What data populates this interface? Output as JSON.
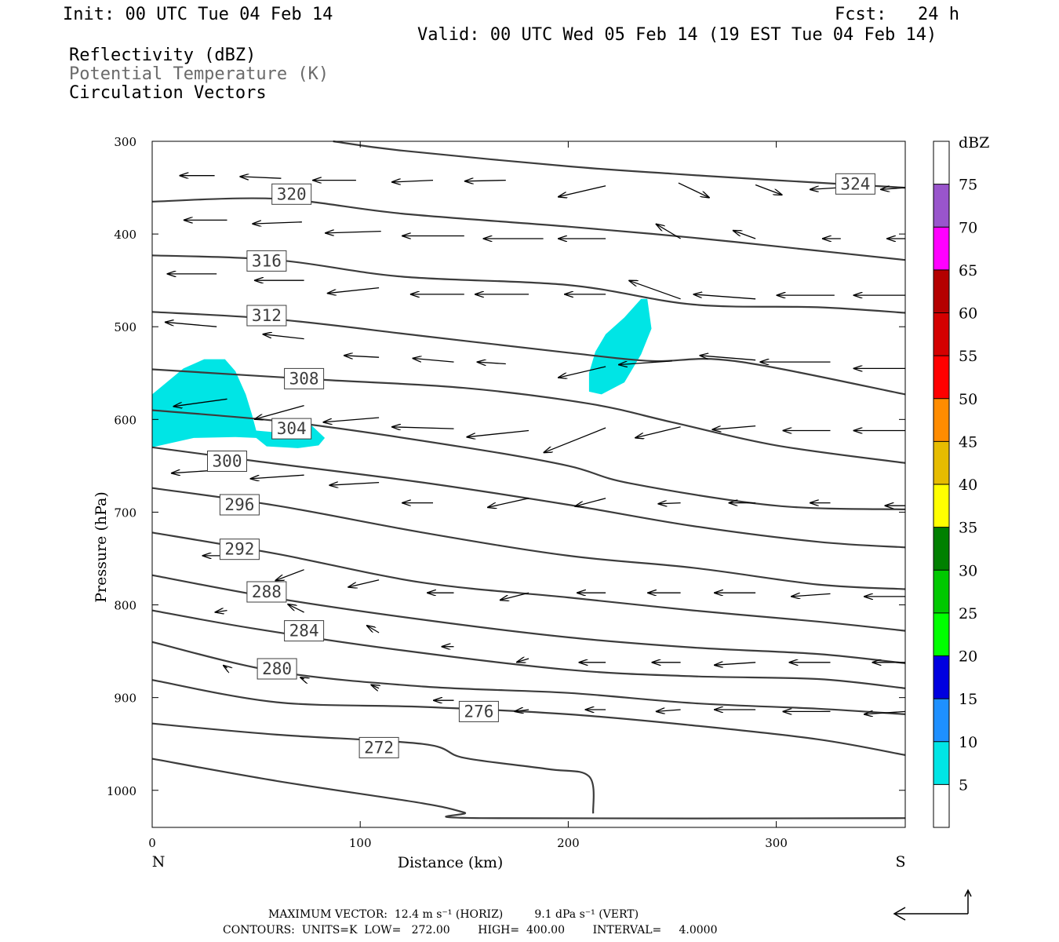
{
  "header": {
    "init": "Init: 00 UTC Tue 04 Feb 14",
    "fcst": "Fcst:   24 h",
    "valid": "Valid: 00 UTC Wed 05 Feb 14 (19 EST Tue 04 Feb 14)",
    "field1": "Reflectivity (dBZ)",
    "field2": "Potential Temperature (K)",
    "field3": "Circulation Vectors"
  },
  "footer": {
    "line1": "MAXIMUM VECTOR:  12.4 m s⁻¹ (HORIZ)         9.1 dPa s⁻¹ (VERT)",
    "line2": "CONTOURS:  UNITS=K  LOW=   272.00        HIGH=  400.00        INTERVAL=     4.0000"
  },
  "chart_data": {
    "type": "cross-section",
    "xlabel": "Distance (km)",
    "ylabel": "Pressure (hPa)",
    "xlim": [
      0,
      362
    ],
    "ylim": [
      1040,
      300
    ],
    "x_ticks": [
      "0",
      "100",
      "200",
      "300"
    ],
    "y_ticks": [
      "300",
      "400",
      "500",
      "600",
      "700",
      "800",
      "900",
      "1000"
    ],
    "end_labels": {
      "left": "N",
      "right": "S"
    },
    "colorbar": {
      "unit": "dBZ",
      "levels": [
        "5",
        "10",
        "15",
        "20",
        "25",
        "30",
        "35",
        "40",
        "45",
        "50",
        "55",
        "60",
        "65",
        "70",
        "75"
      ],
      "colors": [
        "#ffffff",
        "#00e5e5",
        "#1e90ff",
        "#0000e0",
        "#00ff00",
        "#00c800",
        "#008000",
        "#ffff00",
        "#e6bc00",
        "#ff8c00",
        "#ff0000",
        "#d40000",
        "#b40000",
        "#ff00ff",
        "#9955cc",
        "#ffffff"
      ]
    },
    "theta_contours": [
      {
        "label": "324",
        "lx": 338,
        "ly": 346,
        "pts": [
          [
            87,
            300
          ],
          [
            120,
            310
          ],
          [
            200,
            327
          ],
          [
            250,
            335
          ],
          [
            300,
            342
          ],
          [
            362,
            350
          ]
        ]
      },
      {
        "label": "320",
        "lx": 67,
        "ly": 357,
        "pts": [
          [
            0,
            365
          ],
          [
            60,
            362
          ],
          [
            120,
            378
          ],
          [
            200,
            392
          ],
          [
            260,
            404
          ],
          [
            320,
            418
          ],
          [
            362,
            428
          ]
        ]
      },
      {
        "label": "316",
        "lx": 55,
        "ly": 429,
        "pts": [
          [
            0,
            423
          ],
          [
            60,
            428
          ],
          [
            120,
            446
          ],
          [
            200,
            455
          ],
          [
            260,
            476
          ],
          [
            320,
            479
          ],
          [
            362,
            485
          ]
        ]
      },
      {
        "label": "312",
        "lx": 55,
        "ly": 488,
        "pts": [
          [
            0,
            484
          ],
          [
            60,
            492
          ],
          [
            130,
            510
          ],
          [
            200,
            528
          ],
          [
            240,
            537
          ],
          [
            280,
            537
          ],
          [
            362,
            573
          ]
        ]
      },
      {
        "label": "308",
        "lx": 73,
        "ly": 556,
        "pts": [
          [
            0,
            546
          ],
          [
            80,
            557
          ],
          [
            150,
            566
          ],
          [
            210,
            583
          ],
          [
            250,
            603
          ],
          [
            300,
            628
          ],
          [
            362,
            647
          ]
        ]
      },
      {
        "label": "304",
        "lx": 67,
        "ly": 610,
        "pts": [
          [
            0,
            590
          ],
          [
            70,
            604
          ],
          [
            150,
            630
          ],
          [
            200,
            650
          ],
          [
            230,
            669
          ],
          [
            300,
            693
          ],
          [
            362,
            697
          ]
        ]
      },
      {
        "label": "300",
        "lx": 36,
        "ly": 645,
        "pts": [
          [
            0,
            630
          ],
          [
            50,
            645
          ],
          [
            130,
            668
          ],
          [
            200,
            692
          ],
          [
            260,
            715
          ],
          [
            320,
            732
          ],
          [
            362,
            738
          ]
        ]
      },
      {
        "label": "296",
        "lx": 42,
        "ly": 692,
        "pts": [
          [
            0,
            674
          ],
          [
            60,
            693
          ],
          [
            130,
            722
          ],
          [
            200,
            747
          ],
          [
            260,
            760
          ],
          [
            320,
            778
          ],
          [
            362,
            783
          ]
        ]
      },
      {
        "label": "292",
        "lx": 42,
        "ly": 740,
        "pts": [
          [
            0,
            722
          ],
          [
            60,
            745
          ],
          [
            130,
            776
          ],
          [
            200,
            792
          ],
          [
            260,
            806
          ],
          [
            320,
            818
          ],
          [
            362,
            828
          ]
        ]
      },
      {
        "label": "288",
        "lx": 55,
        "ly": 786,
        "pts": [
          [
            0,
            768
          ],
          [
            60,
            793
          ],
          [
            130,
            816
          ],
          [
            200,
            835
          ],
          [
            260,
            846
          ],
          [
            320,
            853
          ],
          [
            362,
            863
          ]
        ]
      },
      {
        "label": "284",
        "lx": 73,
        "ly": 828,
        "pts": [
          [
            0,
            806
          ],
          [
            50,
            826
          ],
          [
            120,
            849
          ],
          [
            200,
            870
          ],
          [
            260,
            877
          ],
          [
            320,
            880
          ],
          [
            362,
            890
          ]
        ]
      },
      {
        "label": "280",
        "lx": 60,
        "ly": 869,
        "pts": [
          [
            0,
            840
          ],
          [
            60,
            872
          ],
          [
            130,
            888
          ],
          [
            200,
            895
          ],
          [
            260,
            906
          ],
          [
            320,
            912
          ],
          [
            362,
            918
          ]
        ]
      },
      {
        "label": "276",
        "lx": 157,
        "ly": 915,
        "pts": [
          [
            0,
            881
          ],
          [
            60,
            905
          ],
          [
            130,
            910
          ],
          [
            200,
            918
          ],
          [
            260,
            930
          ],
          [
            320,
            945
          ],
          [
            362,
            962
          ]
        ]
      },
      {
        "label": "272",
        "lx": 109,
        "ly": 954,
        "pts": [
          [
            0,
            928
          ],
          [
            60,
            940
          ],
          [
            130,
            950
          ],
          [
            150,
            965
          ],
          [
            190,
            977
          ],
          [
            210,
            985
          ],
          [
            212,
            1025
          ]
        ]
      }
    ],
    "ground_line": [
      [
        0,
        966
      ],
      [
        60,
        990
      ],
      [
        130,
        1014
      ],
      [
        150,
        1024
      ],
      [
        158,
        1030
      ],
      [
        362,
        1030
      ]
    ],
    "reflectivity_areas": [
      {
        "dbz_bin": "5-10",
        "pts": [
          [
            0,
            573
          ],
          [
            15,
            545
          ],
          [
            25,
            535
          ],
          [
            35,
            535
          ],
          [
            40,
            548
          ],
          [
            45,
            573
          ],
          [
            48,
            595
          ],
          [
            50,
            612
          ],
          [
            60,
            614
          ],
          [
            65,
            600
          ],
          [
            75,
            603
          ],
          [
            83,
            620
          ],
          [
            80,
            628
          ],
          [
            70,
            631
          ],
          [
            55,
            629
          ],
          [
            50,
            620
          ],
          [
            40,
            619
          ],
          [
            20,
            620
          ],
          [
            0,
            630
          ]
        ]
      },
      {
        "dbz_bin": "5-10",
        "pts": [
          [
            218,
            508
          ],
          [
            227,
            490
          ],
          [
            235,
            470
          ],
          [
            238,
            470
          ],
          [
            240,
            502
          ],
          [
            235,
            530
          ],
          [
            227,
            560
          ],
          [
            216,
            573
          ],
          [
            210,
            570
          ],
          [
            210,
            550
          ],
          [
            213,
            527
          ]
        ]
      }
    ],
    "vectors": [
      [
        30,
        337,
        -17,
        0
      ],
      [
        62,
        340,
        -20,
        -2
      ],
      [
        98,
        342,
        -21,
        0
      ],
      [
        135,
        342,
        -20,
        2
      ],
      [
        170,
        342,
        -20,
        1
      ],
      [
        218,
        348,
        -23,
        12
      ],
      [
        253,
        345,
        15,
        16
      ],
      [
        290,
        347,
        13,
        11
      ],
      [
        330,
        350,
        -14,
        2
      ],
      [
        362,
        350,
        -12,
        2
      ],
      [
        36,
        385,
        -21,
        0
      ],
      [
        72,
        387,
        -24,
        2
      ],
      [
        110,
        397,
        -27,
        2
      ],
      [
        150,
        402,
        -30,
        0
      ],
      [
        188,
        405,
        -29,
        0
      ],
      [
        218,
        405,
        -23,
        0
      ],
      [
        254,
        405,
        -12,
        -16
      ],
      [
        290,
        405,
        -11,
        -9
      ],
      [
        331,
        405,
        -9,
        0
      ],
      [
        362,
        405,
        -9,
        0
      ],
      [
        31,
        443,
        -24,
        0
      ],
      [
        73,
        450,
        -24,
        0
      ],
      [
        109,
        458,
        -25,
        6
      ],
      [
        150,
        465,
        -26,
        0
      ],
      [
        181,
        465,
        -26,
        0
      ],
      [
        218,
        465,
        -20,
        0
      ],
      [
        254,
        470,
        -25,
        -20
      ],
      [
        290,
        470,
        -30,
        -5
      ],
      [
        328,
        466,
        -28,
        0
      ],
      [
        362,
        466,
        -25,
        0
      ],
      [
        31,
        500,
        -25,
        -5
      ],
      [
        73,
        513,
        -20,
        -5
      ],
      [
        109,
        533,
        -17,
        -2
      ],
      [
        145,
        538,
        -20,
        -4
      ],
      [
        170,
        540,
        -14,
        -2
      ],
      [
        218,
        543,
        -23,
        12
      ],
      [
        250,
        537,
        -26,
        4
      ],
      [
        290,
        536,
        -27,
        -5
      ],
      [
        326,
        538,
        -34,
        0
      ],
      [
        362,
        545,
        -25,
        0
      ],
      [
        36,
        578,
        -26,
        8
      ],
      [
        73,
        585,
        -24,
        15
      ],
      [
        109,
        598,
        -27,
        5
      ],
      [
        145,
        610,
        -30,
        -2
      ],
      [
        181,
        612,
        -30,
        7
      ],
      [
        218,
        609,
        -30,
        27
      ],
      [
        254,
        608,
        -22,
        12
      ],
      [
        290,
        607,
        -21,
        4
      ],
      [
        326,
        612,
        -23,
        0
      ],
      [
        362,
        612,
        -25,
        0
      ],
      [
        36,
        654,
        -27,
        4
      ],
      [
        73,
        660,
        -26,
        4
      ],
      [
        109,
        668,
        -24,
        3
      ],
      [
        135,
        690,
        -15,
        0
      ],
      [
        181,
        685,
        -20,
        10
      ],
      [
        218,
        685,
        -15,
        9
      ],
      [
        254,
        690,
        -11,
        1
      ],
      [
        290,
        690,
        -13,
        0
      ],
      [
        326,
        690,
        -10,
        0
      ],
      [
        362,
        693,
        -10,
        0
      ],
      [
        36,
        747,
        -12,
        0
      ],
      [
        73,
        762,
        -14,
        12
      ],
      [
        109,
        773,
        -15,
        8
      ],
      [
        145,
        787,
        -13,
        0
      ],
      [
        181,
        787,
        -14,
        8
      ],
      [
        218,
        787,
        -14,
        0
      ],
      [
        254,
        787,
        -16,
        0
      ],
      [
        290,
        787,
        -20,
        0
      ],
      [
        326,
        788,
        -19,
        3
      ],
      [
        362,
        791,
        -20,
        0
      ],
      [
        36,
        806,
        -6,
        2
      ],
      [
        73,
        808,
        -8,
        -9
      ],
      [
        109,
        830,
        -6,
        -8
      ],
      [
        145,
        845,
        -6,
        0
      ],
      [
        181,
        858,
        -6,
        4
      ],
      [
        218,
        862,
        -13,
        0
      ],
      [
        254,
        862,
        -14,
        0
      ],
      [
        290,
        862,
        -20,
        3
      ],
      [
        326,
        862,
        -20,
        0
      ],
      [
        362,
        862,
        -16,
        0
      ],
      [
        36,
        868,
        -2,
        -3
      ],
      [
        73,
        880,
        -2,
        -2
      ],
      [
        109,
        890,
        -4,
        -4
      ],
      [
        145,
        903,
        -10,
        0
      ],
      [
        181,
        913,
        -7,
        2
      ],
      [
        218,
        913,
        -10,
        0
      ],
      [
        254,
        913,
        -12,
        2
      ],
      [
        290,
        913,
        -20,
        0
      ],
      [
        326,
        915,
        -23,
        0
      ],
      [
        362,
        915,
        -20,
        3
      ]
    ]
  }
}
